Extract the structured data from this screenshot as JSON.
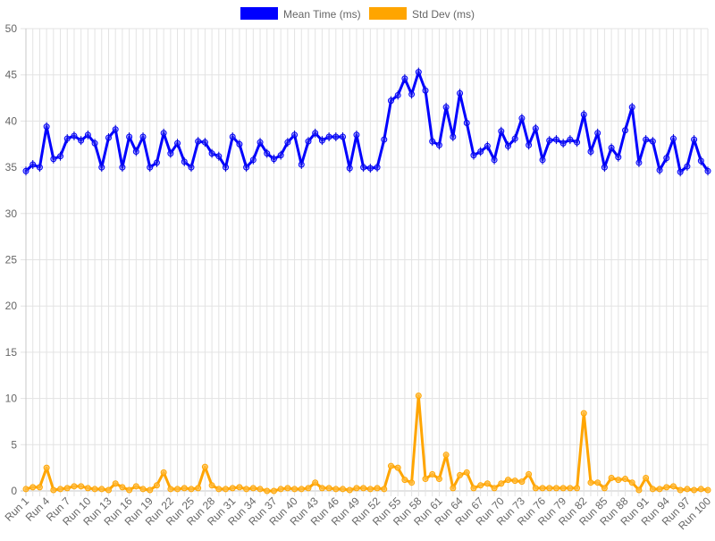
{
  "chart_data": {
    "type": "line",
    "x": [
      "Run 1",
      "Run 2",
      "Run 3",
      "Run 4",
      "Run 5",
      "Run 6",
      "Run 7",
      "Run 8",
      "Run 9",
      "Run 10",
      "Run 11",
      "Run 12",
      "Run 13",
      "Run 14",
      "Run 15",
      "Run 16",
      "Run 17",
      "Run 18",
      "Run 19",
      "Run 20",
      "Run 21",
      "Run 22",
      "Run 23",
      "Run 24",
      "Run 25",
      "Run 26",
      "Run 27",
      "Run 28",
      "Run 29",
      "Run 30",
      "Run 31",
      "Run 32",
      "Run 33",
      "Run 34",
      "Run 35",
      "Run 36",
      "Run 37",
      "Run 38",
      "Run 39",
      "Run 40",
      "Run 41",
      "Run 42",
      "Run 43",
      "Run 44",
      "Run 45",
      "Run 46",
      "Run 47",
      "Run 48",
      "Run 49",
      "Run 50",
      "Run 51",
      "Run 52",
      "Run 53",
      "Run 54",
      "Run 55",
      "Run 56",
      "Run 57",
      "Run 58",
      "Run 59",
      "Run 60",
      "Run 61",
      "Run 62",
      "Run 63",
      "Run 64",
      "Run 65",
      "Run 66",
      "Run 67",
      "Run 68",
      "Run 69",
      "Run 70",
      "Run 71",
      "Run 72",
      "Run 73",
      "Run 74",
      "Run 75",
      "Run 76",
      "Run 77",
      "Run 78",
      "Run 79",
      "Run 80",
      "Run 81",
      "Run 82",
      "Run 83",
      "Run 84",
      "Run 85",
      "Run 86",
      "Run 87",
      "Run 88",
      "Run 89",
      "Run 90",
      "Run 91",
      "Run 92",
      "Run 93",
      "Run 94",
      "Run 95",
      "Run 96",
      "Run 97",
      "Run 98",
      "Run 99",
      "Run 100"
    ],
    "x_tick_labels": [
      "Run 1",
      "Run 4",
      "Run 7",
      "Run 10",
      "Run 13",
      "Run 16",
      "Run 19",
      "Run 22",
      "Run 25",
      "Run 28",
      "Run 31",
      "Run 34",
      "Run 37",
      "Run 40",
      "Run 43",
      "Run 46",
      "Run 49",
      "Run 52",
      "Run 55",
      "Run 58",
      "Run 61",
      "Run 64",
      "Run 67",
      "Run 70",
      "Run 73",
      "Run 76",
      "Run 79",
      "Run 82",
      "Run 85",
      "Run 88",
      "Run 91",
      "Run 94",
      "Run 97",
      "Run 100"
    ],
    "series": [
      {
        "name": "Mean Time (ms)",
        "color": "#0000ff",
        "values": [
          34.6,
          35.3,
          35.0,
          39.4,
          35.9,
          36.2,
          38.1,
          38.4,
          37.9,
          38.5,
          37.6,
          35.0,
          38.2,
          39.1,
          35.0,
          38.3,
          36.7,
          38.3,
          35.0,
          35.5,
          38.7,
          36.5,
          37.6,
          35.6,
          35.0,
          37.8,
          37.7,
          36.5,
          36.2,
          35.0,
          38.3,
          37.5,
          35.0,
          35.8,
          37.7,
          36.5,
          35.9,
          36.3,
          37.7,
          38.5,
          35.3,
          37.8,
          38.7,
          37.9,
          38.3,
          38.3,
          38.3,
          34.9,
          38.5,
          35.0,
          34.9,
          35.0,
          38.0,
          42.2,
          42.8,
          44.6,
          42.9,
          45.3,
          43.3,
          37.8,
          37.4,
          41.5,
          38.3,
          43.0,
          39.8,
          36.3,
          36.7,
          37.3,
          35.8,
          38.9,
          37.3,
          38.1,
          40.3,
          37.4,
          39.2,
          35.8,
          37.9,
          38.0,
          37.6,
          38.0,
          37.7,
          40.7,
          36.7,
          38.7,
          35.0,
          37.1,
          36.1,
          39.0,
          41.5,
          35.5,
          38.0,
          37.8,
          34.7,
          36.0,
          38.1,
          34.5,
          35.1,
          38.0,
          35.7,
          34.6
        ]
      },
      {
        "name": "Std Dev (ms)",
        "color": "#ffa500",
        "values": [
          0.2,
          0.4,
          0.4,
          2.5,
          0.1,
          0.2,
          0.3,
          0.5,
          0.5,
          0.3,
          0.2,
          0.2,
          0.1,
          0.8,
          0.4,
          0.1,
          0.5,
          0.2,
          0.1,
          0.6,
          2.0,
          0.2,
          0.2,
          0.3,
          0.2,
          0.3,
          2.6,
          0.6,
          0.2,
          0.2,
          0.3,
          0.4,
          0.2,
          0.3,
          0.2,
          0.0,
          0.0,
          0.2,
          0.3,
          0.2,
          0.2,
          0.3,
          0.9,
          0.3,
          0.3,
          0.2,
          0.2,
          0.1,
          0.3,
          0.3,
          0.2,
          0.3,
          0.2,
          2.7,
          2.5,
          1.2,
          0.9,
          10.3,
          1.3,
          1.8,
          1.3,
          3.9,
          0.3,
          1.7,
          2.0,
          0.3,
          0.6,
          0.8,
          0.3,
          0.8,
          1.2,
          1.1,
          1.0,
          1.8,
          0.3,
          0.3,
          0.3,
          0.3,
          0.3,
          0.3,
          0.3,
          8.4,
          0.9,
          0.9,
          0.3,
          1.4,
          1.2,
          1.3,
          0.9,
          0.1,
          1.4,
          0.2,
          0.2,
          0.4,
          0.5,
          0.1,
          0.2,
          0.1,
          0.2,
          0.1
        ]
      }
    ],
    "y_ticks": [
      0,
      5,
      10,
      15,
      20,
      25,
      30,
      35,
      40,
      45,
      50
    ],
    "ylim": [
      0,
      50
    ],
    "grid": true,
    "legend_position": "top-center"
  }
}
